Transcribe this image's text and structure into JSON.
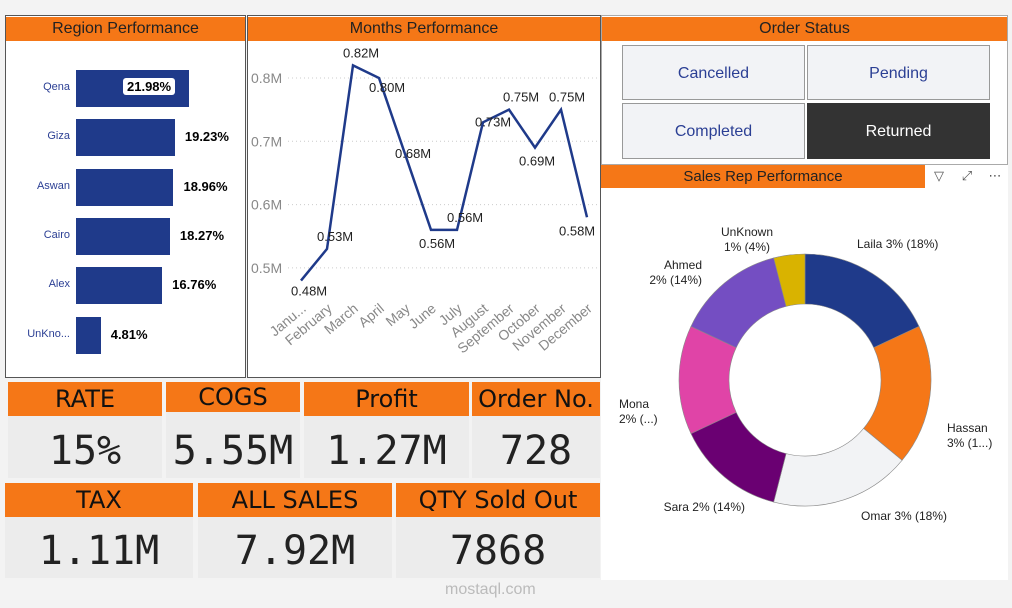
{
  "region": {
    "title": "Region Performance",
    "items": [
      {
        "label": "Qena",
        "value": 21.98,
        "text": "21.98%"
      },
      {
        "label": "Giza",
        "value": 19.23,
        "text": "19.23%"
      },
      {
        "label": "Aswan",
        "value": 18.96,
        "text": "18.96%"
      },
      {
        "label": "Cairo",
        "value": 18.27,
        "text": "18.27%"
      },
      {
        "label": "Alex",
        "value": 16.76,
        "text": "16.76%"
      },
      {
        "label": "UnKno...",
        "value": 4.81,
        "text": "4.81%"
      }
    ]
  },
  "chart_data": [
    {
      "type": "line",
      "title": "Months Performance",
      "categories": [
        "Janu...",
        "February",
        "March",
        "April",
        "May",
        "June",
        "July",
        "August",
        "September",
        "October",
        "November",
        "December"
      ],
      "values": [
        0.48,
        0.53,
        0.82,
        0.8,
        0.68,
        0.56,
        0.56,
        0.73,
        0.75,
        0.69,
        0.75,
        0.58
      ],
      "labels": [
        "0.48M",
        "0.53M",
        "0.82M",
        "0.80M",
        "0.68M",
        "0.56M",
        "0.56M",
        "0.73M",
        "0.75M",
        "0.69M",
        "0.75M",
        "0.58M"
      ],
      "yticks": [
        "0.8M",
        "0.7M",
        "0.6M",
        "0.5M"
      ],
      "ytick_values": [
        0.8,
        0.7,
        0.6,
        0.5
      ],
      "ylim": [
        0.45,
        0.85
      ],
      "grid": true,
      "color": "#1f3a8a"
    },
    {
      "type": "pie",
      "title": "Sales Rep Performance",
      "slices": [
        {
          "name": "Laila",
          "share": 18,
          "label": "Laila 3% (18%)",
          "color": "#1f3a8a"
        },
        {
          "name": "Hassan",
          "share": 18,
          "label": "Hassan|3% (1...)",
          "color": "#f57717"
        },
        {
          "name": "Omar",
          "share": 18,
          "label": "Omar 3% (18%)",
          "color": "#f2f3f5"
        },
        {
          "name": "Sara",
          "share": 14,
          "label": "Sara 2% (14%)",
          "color": "#6a0072"
        },
        {
          "name": "Mona",
          "share": 14,
          "label": "Mona|2% (...)",
          "color": "#e044a7"
        },
        {
          "name": "Ahmed",
          "share": 14,
          "label": "Ahmed|2% (14%)",
          "color": "#744ec2"
        },
        {
          "name": "UnKnown",
          "share": 4,
          "label": "UnKnown|1% (4%)",
          "color": "#d9b300"
        }
      ]
    }
  ],
  "order_status": {
    "title": "Order Status",
    "buttons": [
      "Cancelled",
      "Pending",
      "Completed",
      "Returned"
    ]
  },
  "kpis": [
    {
      "label": "RATE",
      "value": "15%"
    },
    {
      "label": "COGS",
      "value": "5.55M"
    },
    {
      "label": "Profit",
      "value": "1.27M"
    },
    {
      "label": "Order No.",
      "value": "728"
    },
    {
      "label": "TAX",
      "value": "1.11M"
    },
    {
      "label": "ALL SALES",
      "value": "7.92M"
    },
    {
      "label": "QTY Sold Out",
      "value": "7868"
    }
  ],
  "watermark": "mostaql.com"
}
